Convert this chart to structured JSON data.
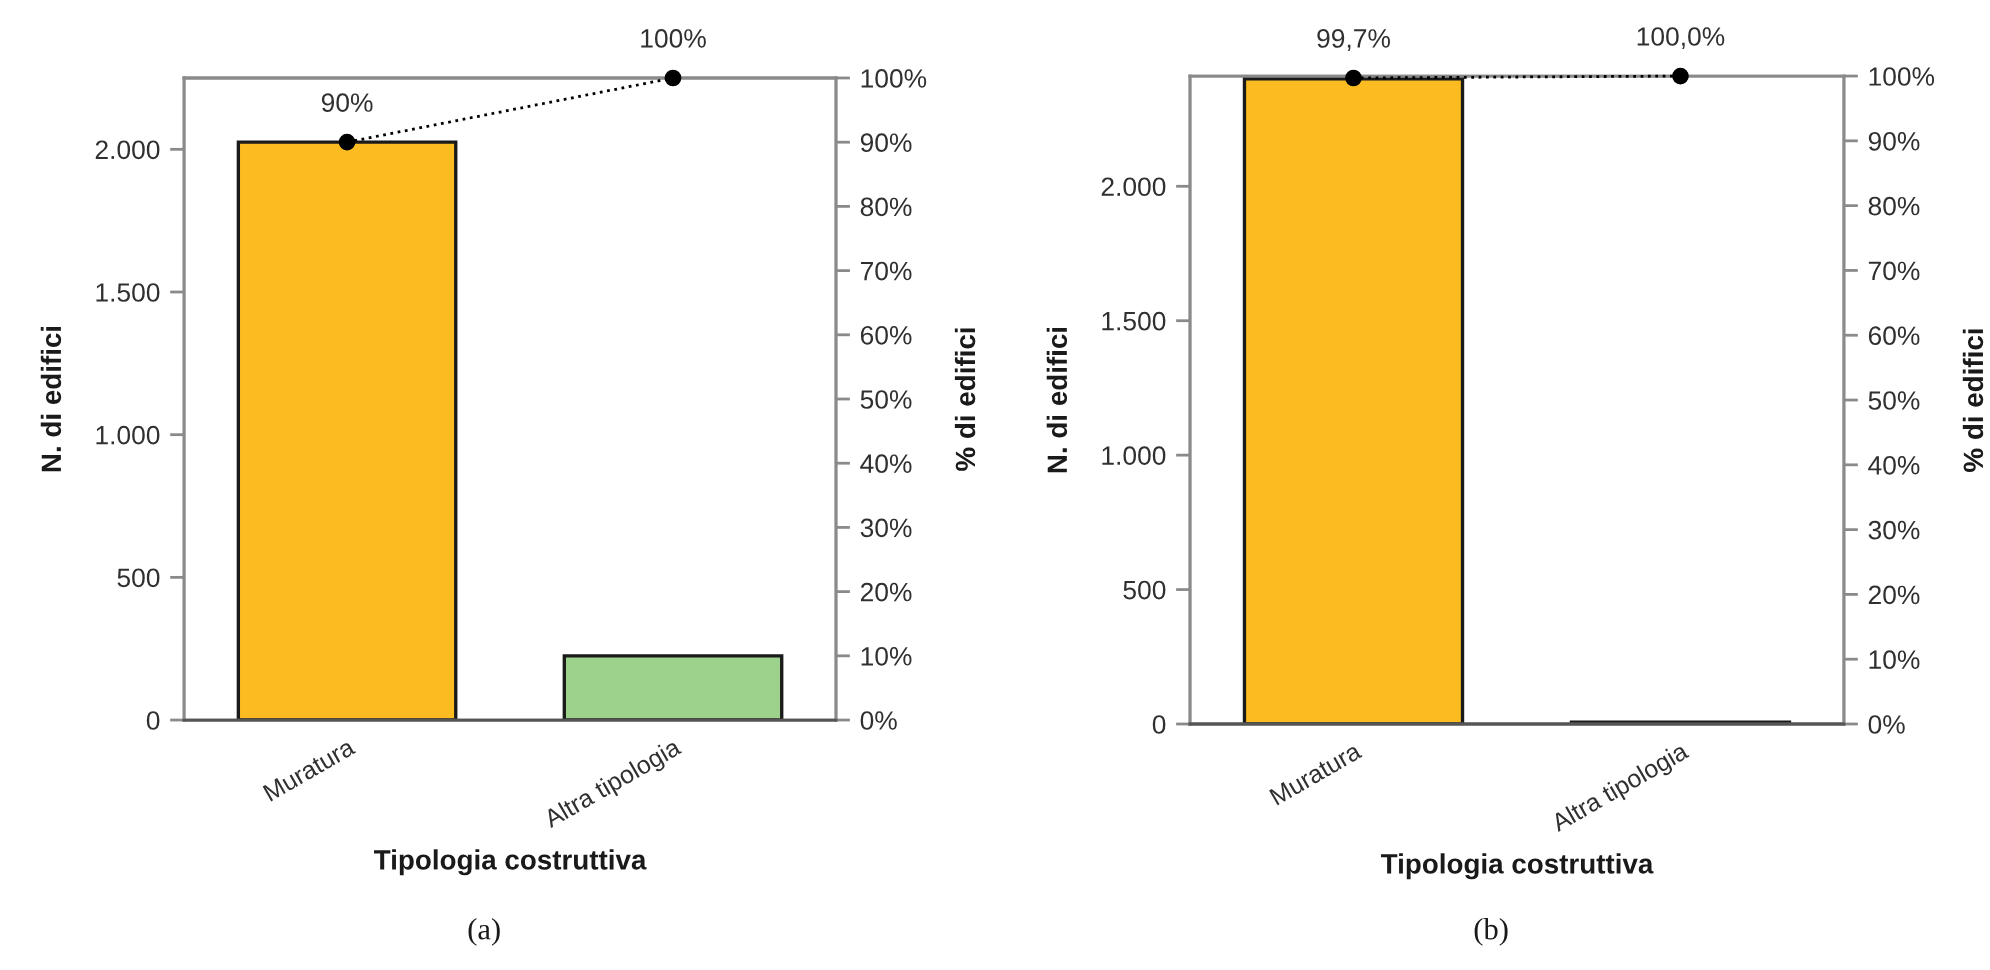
{
  "chart_data": [
    {
      "type": "bar",
      "categories": [
        "Muratura",
        "Altra tipologia"
      ],
      "xlabel": "Tipologia costruttiva",
      "ylabel": "N. di edifici",
      "y2label": "% di edifici",
      "ylim": [
        0,
        2250
      ],
      "yticks": [
        0,
        500,
        {
          "value": 1000,
          "label": "1.000"
        },
        {
          "value": 1500,
          "label": "1.500"
        },
        {
          "value": 2000,
          "label": "2.000"
        }
      ],
      "y2lim": [
        0,
        100
      ],
      "y2ticks": [
        {
          "value": 0,
          "label": "0%"
        },
        {
          "value": 10,
          "label": "10%"
        },
        {
          "value": 20,
          "label": "20%"
        },
        {
          "value": 30,
          "label": "30%"
        },
        {
          "value": 40,
          "label": "40%"
        },
        {
          "value": 50,
          "label": "50%"
        },
        {
          "value": 60,
          "label": "60%"
        },
        {
          "value": 70,
          "label": "70%"
        },
        {
          "value": 80,
          "label": "80%"
        },
        {
          "value": 90,
          "label": "90%"
        },
        {
          "value": 100,
          "label": "100%"
        }
      ],
      "series": [
        {
          "colors": [
            "#fbbb21",
            "#9dd28c"
          ],
          "values": [
            2025,
            225
          ]
        },
        {
          "type": "line",
          "axis": "y2",
          "color": "#000000",
          "marker": "circle",
          "line_style": "dotted",
          "values": [
            90,
            100
          ],
          "value_labels": [
            "90%",
            "100%"
          ]
        }
      ],
      "annotations": [
        "(a)"
      ]
    },
    {
      "type": "bar",
      "categories": [
        "Muratura",
        "Altra tipologia"
      ],
      "xlabel": "Tipologia costruttiva",
      "ylabel": "N. di edifici",
      "y2label": "% di edifici",
      "ylim": [
        0,
        2410
      ],
      "yticks": [
        0,
        500,
        {
          "value": 1000,
          "label": "1.000"
        },
        {
          "value": 1500,
          "label": "1.500"
        },
        {
          "value": 2000,
          "label": "2.000"
        }
      ],
      "y2lim": [
        0,
        100
      ],
      "y2ticks": [
        {
          "value": 0,
          "label": "0%"
        },
        {
          "value": 10,
          "label": "10%"
        },
        {
          "value": 20,
          "label": "20%"
        },
        {
          "value": 30,
          "label": "30%"
        },
        {
          "value": 40,
          "label": "40%"
        },
        {
          "value": 50,
          "label": "50%"
        },
        {
          "value": 60,
          "label": "60%"
        },
        {
          "value": 70,
          "label": "70%"
        },
        {
          "value": 80,
          "label": "80%"
        },
        {
          "value": 90,
          "label": "90%"
        },
        {
          "value": 100,
          "label": "100%"
        }
      ],
      "series": [
        {
          "colors": [
            "#fbbb21",
            "#9dd28c"
          ],
          "values": [
            2400,
            7
          ]
        },
        {
          "type": "line",
          "axis": "y2",
          "color": "#000000",
          "marker": "circle",
          "line_style": "dotted",
          "values": [
            99.7,
            100
          ],
          "value_labels": [
            "99,7%",
            "100,0%"
          ]
        }
      ],
      "annotations": [
        "(b)"
      ]
    }
  ]
}
